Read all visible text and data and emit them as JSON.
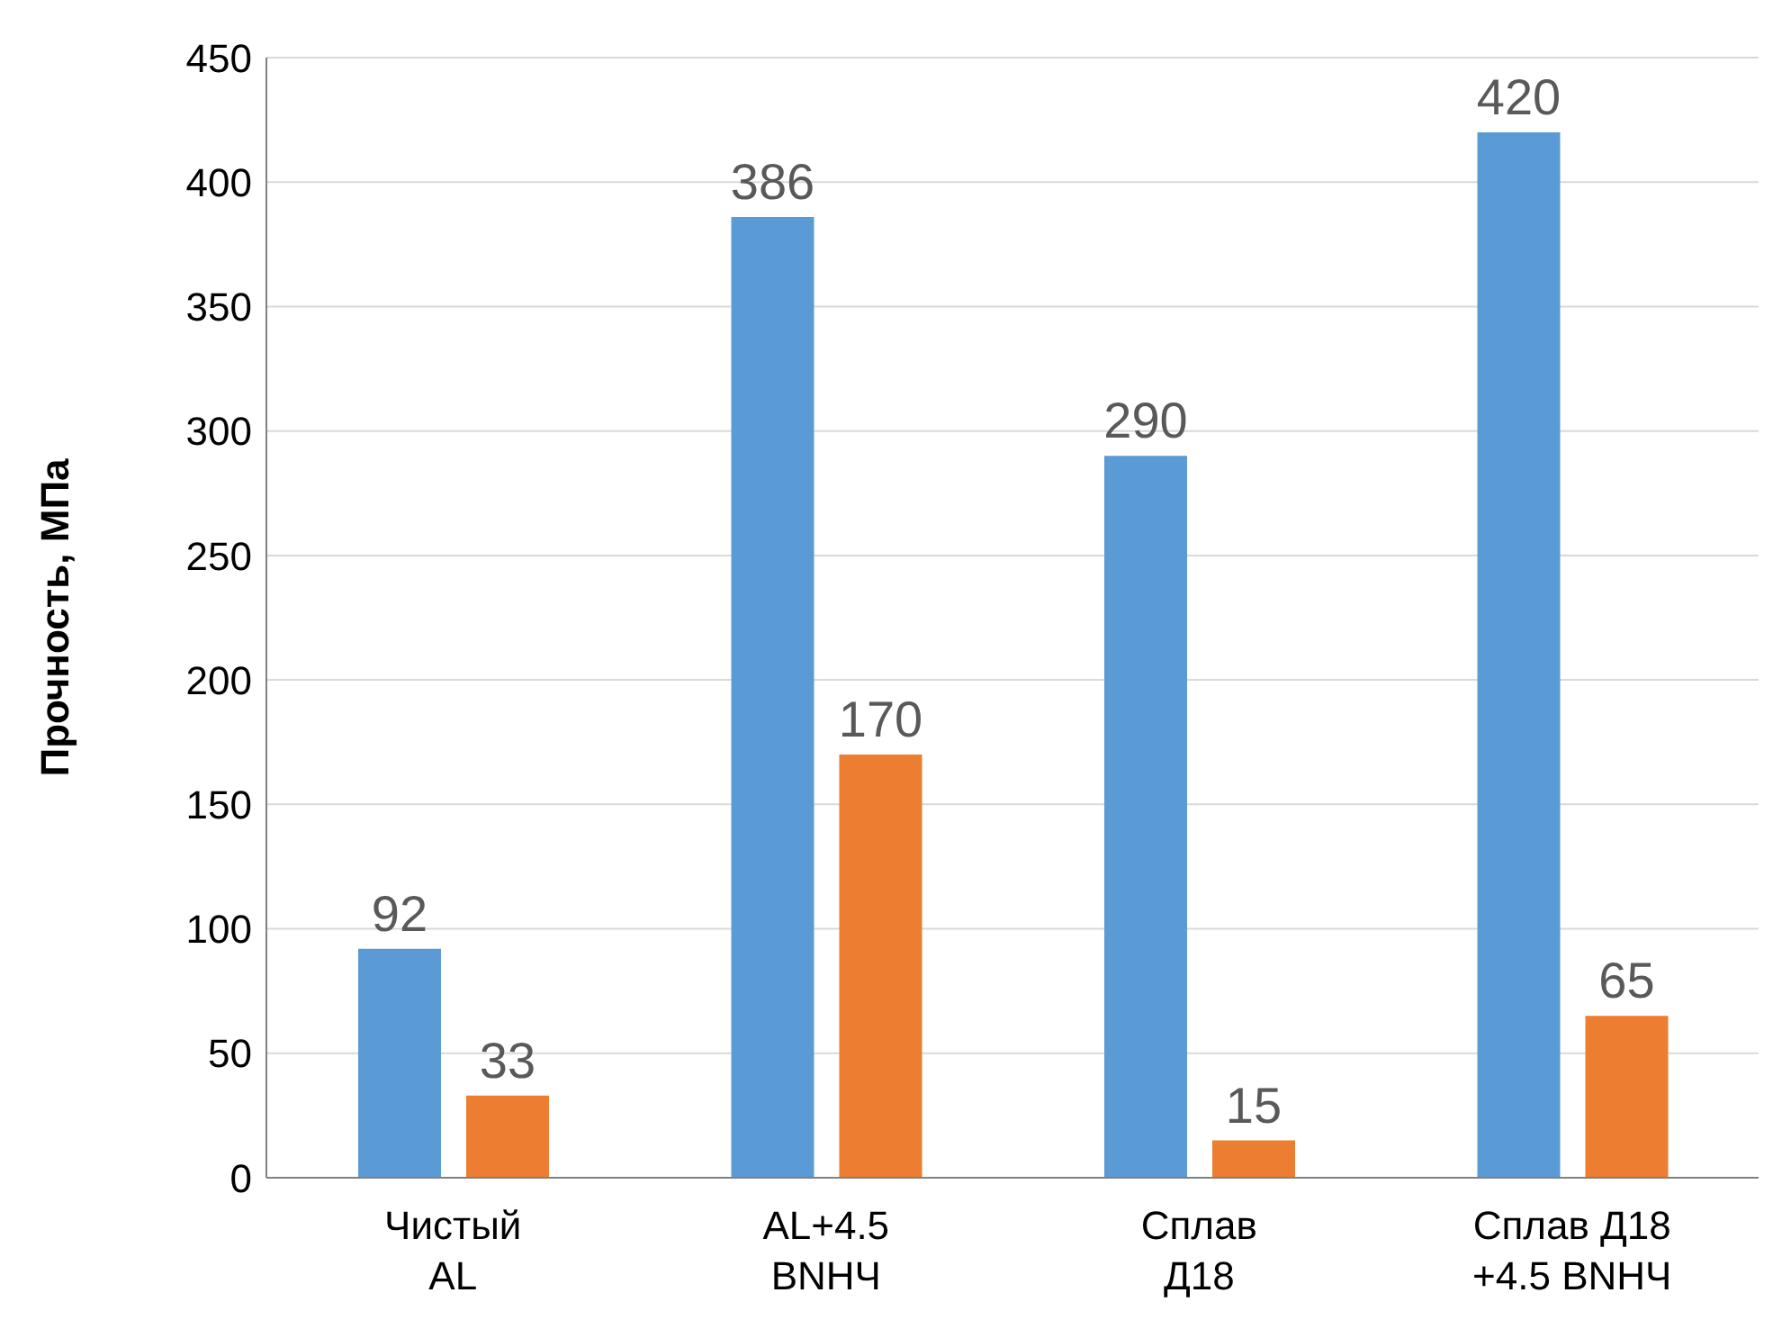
{
  "chart_data": {
    "type": "bar",
    "ylabel": "Прочность, МПа",
    "categories": [
      "Чистый\nAL",
      "AL+4.5\nBNHЧ",
      "Сплав\nД18",
      "Сплав Д18\n+4.5 BNHЧ"
    ],
    "series": [
      {
        "color": "#5b9bd5",
        "values": [
          92,
          386,
          290,
          420
        ]
      },
      {
        "color": "#ed7d31",
        "values": [
          33,
          170,
          15,
          65
        ]
      }
    ],
    "ylim": [
      0,
      450
    ],
    "yticks": [
      0,
      50,
      100,
      150,
      200,
      250,
      300,
      350,
      400,
      450
    ],
    "grid": "y",
    "data_labels": true,
    "legend": false
  }
}
